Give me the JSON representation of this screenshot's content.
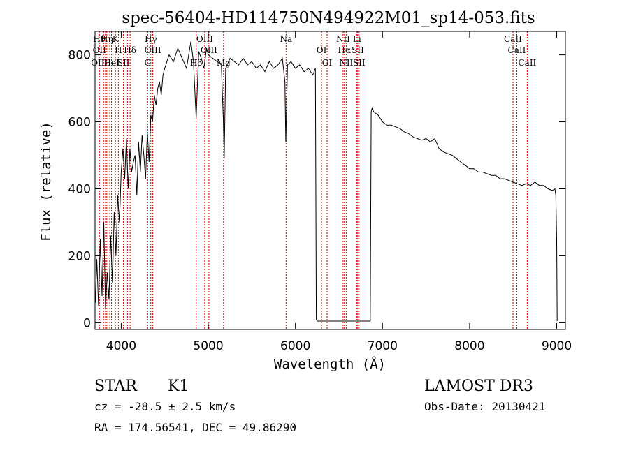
{
  "chart_data": {
    "type": "line",
    "title": "spec-56404-HD114750N494922M01_sp14-053.fits",
    "xlabel": "Wavelength (Å)",
    "ylabel": "Flux (relative)",
    "xlim": [
      3700,
      9100
    ],
    "ylim": [
      -20,
      870
    ],
    "xticks": [
      4000,
      5000,
      6000,
      7000,
      8000,
      9000
    ],
    "yticks": [
      0,
      200,
      400,
      600,
      800
    ],
    "grid": false,
    "series": [
      {
        "x": [
          3705,
          3720,
          3740,
          3760,
          3780,
          3800,
          3820,
          3840,
          3860,
          3880,
          3900,
          3920,
          3940,
          3960,
          3980,
          4000,
          4020,
          4040,
          4060,
          4080,
          4100,
          4120,
          4140,
          4160,
          4180,
          4200,
          4220,
          4240,
          4260,
          4280,
          4300,
          4320,
          4340,
          4360,
          4380,
          4400,
          4420,
          4440,
          4460,
          4480,
          4500,
          4550,
          4600,
          4650,
          4700,
          4750,
          4800,
          4830,
          4861,
          4890,
          4920,
          4950,
          4980,
          5000,
          5050,
          5100,
          5150,
          5172,
          5183,
          5200,
          5250,
          5300,
          5350,
          5400,
          5450,
          5500,
          5550,
          5600,
          5650,
          5700,
          5750,
          5800,
          5850,
          5880,
          5890,
          5896,
          5910,
          5950,
          6000,
          6050,
          6100,
          6150,
          6200,
          6230,
          6240,
          6250,
          6300,
          6400,
          6500,
          6563,
          6600,
          6700,
          6800,
          6860,
          6870,
          6880,
          6900,
          6950,
          7000,
          7050,
          7100,
          7150,
          7200,
          7250,
          7300,
          7350,
          7400,
          7450,
          7500,
          7550,
          7600,
          7650,
          7700,
          7750,
          7800,
          7850,
          7900,
          7950,
          8000,
          8050,
          8100,
          8150,
          8200,
          8250,
          8300,
          8350,
          8400,
          8450,
          8500,
          8550,
          8600,
          8650,
          8700,
          8750,
          8800,
          8850,
          8900,
          8950,
          8980,
          8990,
          9000,
          9005
        ],
        "y": [
          60,
          190,
          50,
          250,
          80,
          300,
          40,
          150,
          70,
          260,
          120,
          330,
          200,
          380,
          300,
          450,
          520,
          430,
          550,
          400,
          520,
          450,
          480,
          500,
          380,
          540,
          450,
          560,
          500,
          430,
          570,
          480,
          620,
          600,
          680,
          650,
          700,
          720,
          680,
          740,
          760,
          800,
          780,
          820,
          790,
          760,
          840,
          780,
          610,
          810,
          790,
          760,
          820,
          800,
          790,
          780,
          770,
          610,
          490,
          760,
          790,
          780,
          770,
          790,
          770,
          780,
          760,
          770,
          750,
          780,
          760,
          770,
          790,
          720,
          540,
          610,
          770,
          780,
          760,
          770,
          750,
          760,
          740,
          760,
          10,
          5,
          5,
          5,
          5,
          5,
          5,
          5,
          5,
          5,
          630,
          640,
          630,
          620,
          600,
          590,
          590,
          585,
          580,
          570,
          565,
          555,
          550,
          545,
          550,
          540,
          550,
          520,
          510,
          505,
          500,
          490,
          480,
          470,
          460,
          460,
          450,
          450,
          445,
          440,
          440,
          430,
          430,
          425,
          420,
          415,
          410,
          415,
          410,
          420,
          410,
          410,
          400,
          395,
          400,
          380,
          250,
          5
        ]
      }
    ],
    "lines": [
      {
        "x": 3750,
        "labels": [
          "Hθ",
          "OII",
          "OIII"
        ]
      },
      {
        "x": 3798,
        "labels": [
          ""
        ]
      },
      {
        "x": 3820,
        "labels": [
          ""
        ]
      },
      {
        "x": 3835,
        "labels": [
          "Hη"
        ]
      },
      {
        "x": 3869,
        "labels": [
          ""
        ]
      },
      {
        "x": 3889,
        "labels": [
          "HeI"
        ]
      },
      {
        "x": 3934,
        "labels": [
          "K"
        ]
      },
      {
        "x": 3968,
        "labels": [
          "H"
        ]
      },
      {
        "x": 4026,
        "labels": [
          "SII"
        ]
      },
      {
        "x": 4072,
        "labels": [
          ""
        ]
      },
      {
        "x": 4102,
        "labels": [
          "Hδ"
        ]
      },
      {
        "x": 4304,
        "labels": [
          "G"
        ]
      },
      {
        "x": 4340,
        "labels": [
          "Hγ"
        ]
      },
      {
        "x": 4363,
        "labels": [
          "OIII"
        ]
      },
      {
        "x": 4861,
        "labels": [
          "Hβ"
        ]
      },
      {
        "x": 4959,
        "labels": [
          "OIII"
        ]
      },
      {
        "x": 5007,
        "labels": [
          "OIII"
        ]
      },
      {
        "x": 5175,
        "labels": [
          "Mg"
        ]
      },
      {
        "x": 5893,
        "labels": [
          "Na"
        ]
      },
      {
        "x": 6300,
        "labels": [
          "OI"
        ]
      },
      {
        "x": 6364,
        "labels": [
          "OI"
        ]
      },
      {
        "x": 6548,
        "labels": [
          "NII"
        ]
      },
      {
        "x": 6563,
        "labels": [
          "Hα"
        ]
      },
      {
        "x": 6583,
        "labels": [
          "NII"
        ]
      },
      {
        "x": 6707,
        "labels": [
          "Li"
        ]
      },
      {
        "x": 6717,
        "labels": [
          "SII"
        ]
      },
      {
        "x": 6731,
        "labels": [
          "SII"
        ]
      },
      {
        "x": 8498,
        "labels": [
          "CaII"
        ]
      },
      {
        "x": 8542,
        "labels": [
          "CaII"
        ]
      },
      {
        "x": 8662,
        "labels": [
          "CaII"
        ]
      }
    ],
    "line_color": "#cc0000"
  },
  "info": {
    "object_class": "STAR",
    "subclass": "K1",
    "survey": "LAMOST DR3",
    "redshift": "cz = -28.5 ± 2.5 km/s",
    "obs_date": "Obs-Date: 20130421",
    "coords": "RA = 174.56541, DEC =  49.86290"
  }
}
